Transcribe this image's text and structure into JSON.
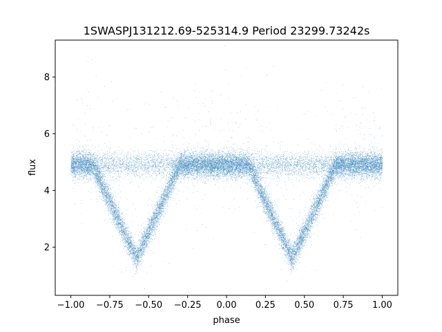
{
  "chart_data": {
    "type": "scatter",
    "title": "1SWASPJ131212.69-525314.9 Period 23299.73242s",
    "xlabel": "phase",
    "ylabel": "flux",
    "xlim": [
      -1.1,
      1.1
    ],
    "ylim": [
      0.3,
      9.3
    ],
    "xticks": [
      -1.0,
      -0.75,
      -0.5,
      -0.25,
      0.0,
      0.25,
      0.5,
      0.75,
      1.0
    ],
    "xtick_labels": [
      "−1.00",
      "−0.75",
      "−0.50",
      "−0.25",
      "0.00",
      "0.25",
      "0.50",
      "0.75",
      "1.00"
    ],
    "yticks": [
      2,
      4,
      6,
      8
    ],
    "ytick_labels": [
      "2",
      "4",
      "6",
      "8"
    ],
    "grid": false,
    "legend": "none",
    "marker_color": "#1f77b4",
    "model": {
      "baseline_flux": 4.9,
      "scatter_sigma": 0.22,
      "eclipse_centers": [
        -0.58,
        0.42
      ],
      "eclipse_half_width": 0.28,
      "eclipse_min_flux": 1.6,
      "phase_range": [
        -1.0,
        1.0
      ],
      "n_points": 26000
    }
  }
}
